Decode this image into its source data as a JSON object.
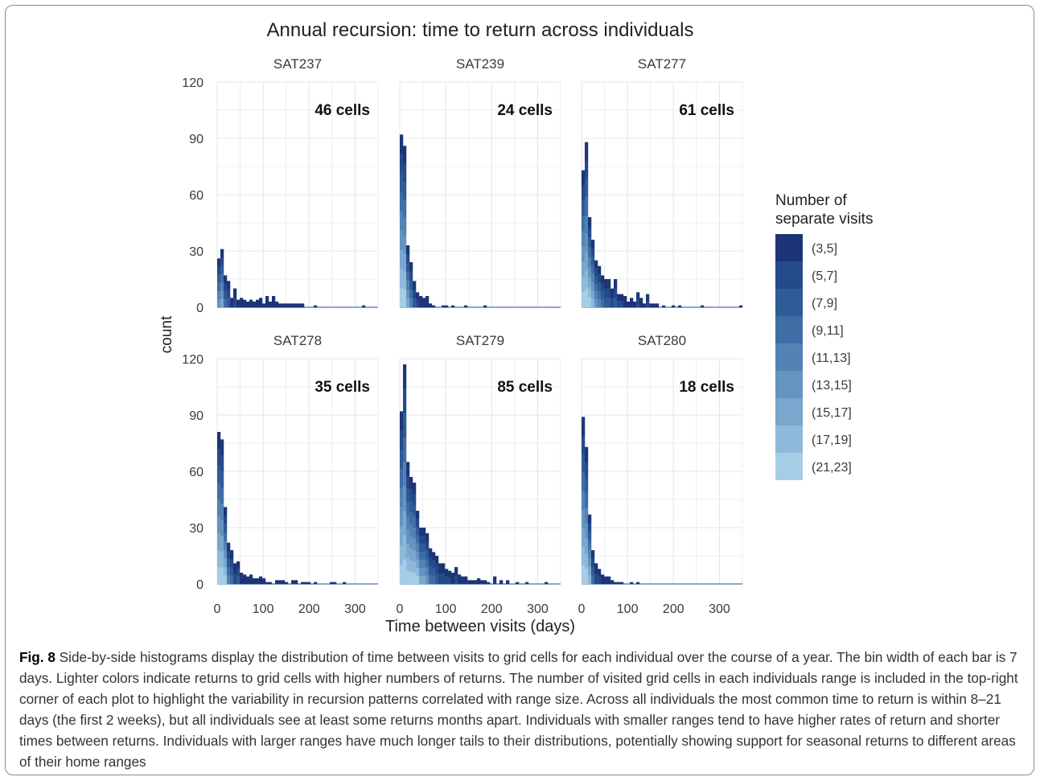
{
  "figure": {
    "title": "Annual recursion: time to return across individuals",
    "xlabel": "Time between visits (days)",
    "ylabel": "count",
    "legend_title": [
      "Number of",
      "separate visits"
    ],
    "legend_labels": [
      "(3,5]",
      "(5,7]",
      "(7,9]",
      "(9,11]",
      "(11,13]",
      "(13,15]",
      "(15,17]",
      "(17,19]",
      "(21,23]"
    ]
  },
  "colors": {
    "legend": [
      "#1d3577",
      "#244a8a",
      "#2f5b96",
      "#3f6ea6",
      "#5283b4",
      "#6494bf",
      "#79a7cd",
      "#8db9da",
      "#a6cde6"
    ],
    "grid": "#e6e6e6",
    "text": "#3c3c3c",
    "baseline": "#4a6fb0"
  },
  "chart_data": {
    "type": "bar",
    "bin_width_days": 7,
    "x_ticks": [
      0,
      100,
      200,
      300
    ],
    "y_ticks": [
      0,
      30,
      60,
      90,
      120
    ],
    "xlim": [
      0,
      350
    ],
    "ylim": [
      0,
      120
    ],
    "panels": [
      {
        "name": "SAT237",
        "annotation": "46 cells",
        "bins": [
          {
            "x": 3.5,
            "count": 26
          },
          {
            "x": 10.5,
            "count": 31
          },
          {
            "x": 17.5,
            "count": 17
          },
          {
            "x": 24.5,
            "count": 14
          },
          {
            "x": 31.5,
            "count": 5
          },
          {
            "x": 38.5,
            "count": 10
          },
          {
            "x": 45.5,
            "count": 4
          },
          {
            "x": 52.5,
            "count": 5
          },
          {
            "x": 59.5,
            "count": 4
          },
          {
            "x": 66.5,
            "count": 3
          },
          {
            "x": 73.5,
            "count": 4
          },
          {
            "x": 80.5,
            "count": 3
          },
          {
            "x": 87.5,
            "count": 4
          },
          {
            "x": 94.5,
            "count": 5
          },
          {
            "x": 101.5,
            "count": 2
          },
          {
            "x": 108.5,
            "count": 6
          },
          {
            "x": 115.5,
            "count": 3
          },
          {
            "x": 122.5,
            "count": 6
          },
          {
            "x": 129.5,
            "count": 3
          },
          {
            "x": 136.5,
            "count": 2
          },
          {
            "x": 143.5,
            "count": 2
          },
          {
            "x": 150.5,
            "count": 2
          },
          {
            "x": 157.5,
            "count": 2
          },
          {
            "x": 164.5,
            "count": 2
          },
          {
            "x": 171.5,
            "count": 2
          },
          {
            "x": 178.5,
            "count": 2
          },
          {
            "x": 185.5,
            "count": 2
          },
          {
            "x": 213.5,
            "count": 1
          },
          {
            "x": 318.5,
            "count": 1
          }
        ]
      },
      {
        "name": "SAT239",
        "annotation": "24 cells",
        "bins": [
          {
            "x": 3.5,
            "count": 92
          },
          {
            "x": 10.5,
            "count": 86
          },
          {
            "x": 17.5,
            "count": 33
          },
          {
            "x": 24.5,
            "count": 24
          },
          {
            "x": 31.5,
            "count": 14
          },
          {
            "x": 38.5,
            "count": 8
          },
          {
            "x": 45.5,
            "count": 6
          },
          {
            "x": 52.5,
            "count": 5
          },
          {
            "x": 59.5,
            "count": 6
          },
          {
            "x": 66.5,
            "count": 2
          },
          {
            "x": 73.5,
            "count": 1
          },
          {
            "x": 94.5,
            "count": 1
          },
          {
            "x": 101.5,
            "count": 1
          },
          {
            "x": 115.5,
            "count": 1
          },
          {
            "x": 143.5,
            "count": 1
          },
          {
            "x": 185.5,
            "count": 1
          }
        ]
      },
      {
        "name": "SAT277",
        "annotation": "61 cells",
        "bins": [
          {
            "x": 3.5,
            "count": 73
          },
          {
            "x": 10.5,
            "count": 88
          },
          {
            "x": 17.5,
            "count": 48
          },
          {
            "x": 24.5,
            "count": 36
          },
          {
            "x": 31.5,
            "count": 25
          },
          {
            "x": 38.5,
            "count": 22
          },
          {
            "x": 45.5,
            "count": 17
          },
          {
            "x": 52.5,
            "count": 15
          },
          {
            "x": 59.5,
            "count": 15
          },
          {
            "x": 66.5,
            "count": 10
          },
          {
            "x": 73.5,
            "count": 15
          },
          {
            "x": 80.5,
            "count": 7
          },
          {
            "x": 87.5,
            "count": 7
          },
          {
            "x": 94.5,
            "count": 6
          },
          {
            "x": 101.5,
            "count": 3
          },
          {
            "x": 108.5,
            "count": 5
          },
          {
            "x": 115.5,
            "count": 3
          },
          {
            "x": 122.5,
            "count": 8
          },
          {
            "x": 129.5,
            "count": 5
          },
          {
            "x": 136.5,
            "count": 2
          },
          {
            "x": 143.5,
            "count": 7
          },
          {
            "x": 150.5,
            "count": 2
          },
          {
            "x": 157.5,
            "count": 2
          },
          {
            "x": 164.5,
            "count": 2
          },
          {
            "x": 178.5,
            "count": 1
          },
          {
            "x": 199.5,
            "count": 1
          },
          {
            "x": 213.5,
            "count": 1
          },
          {
            "x": 262.5,
            "count": 1
          },
          {
            "x": 346.5,
            "count": 1
          }
        ]
      },
      {
        "name": "SAT278",
        "annotation": "35 cells",
        "bins": [
          {
            "x": 3.5,
            "count": 81
          },
          {
            "x": 10.5,
            "count": 77
          },
          {
            "x": 17.5,
            "count": 41
          },
          {
            "x": 24.5,
            "count": 22
          },
          {
            "x": 31.5,
            "count": 18
          },
          {
            "x": 38.5,
            "count": 11
          },
          {
            "x": 45.5,
            "count": 12
          },
          {
            "x": 52.5,
            "count": 6
          },
          {
            "x": 59.5,
            "count": 5
          },
          {
            "x": 66.5,
            "count": 4
          },
          {
            "x": 73.5,
            "count": 5
          },
          {
            "x": 80.5,
            "count": 3
          },
          {
            "x": 87.5,
            "count": 3
          },
          {
            "x": 94.5,
            "count": 4
          },
          {
            "x": 101.5,
            "count": 3
          },
          {
            "x": 108.5,
            "count": 1
          },
          {
            "x": 115.5,
            "count": 1
          },
          {
            "x": 129.5,
            "count": 2
          },
          {
            "x": 136.5,
            "count": 2
          },
          {
            "x": 143.5,
            "count": 2
          },
          {
            "x": 150.5,
            "count": 1
          },
          {
            "x": 164.5,
            "count": 2
          },
          {
            "x": 171.5,
            "count": 2
          },
          {
            "x": 185.5,
            "count": 1
          },
          {
            "x": 192.5,
            "count": 1
          },
          {
            "x": 199.5,
            "count": 1
          },
          {
            "x": 213.5,
            "count": 1
          },
          {
            "x": 248.5,
            "count": 1
          },
          {
            "x": 255.5,
            "count": 1
          },
          {
            "x": 276.5,
            "count": 1
          }
        ]
      },
      {
        "name": "SAT279",
        "annotation": "85 cells",
        "bins": [
          {
            "x": 3.5,
            "count": 92
          },
          {
            "x": 10.5,
            "count": 117
          },
          {
            "x": 17.5,
            "count": 65
          },
          {
            "x": 24.5,
            "count": 57
          },
          {
            "x": 31.5,
            "count": 54
          },
          {
            "x": 38.5,
            "count": 39
          },
          {
            "x": 45.5,
            "count": 30
          },
          {
            "x": 52.5,
            "count": 30
          },
          {
            "x": 59.5,
            "count": 27
          },
          {
            "x": 66.5,
            "count": 19
          },
          {
            "x": 73.5,
            "count": 17
          },
          {
            "x": 80.5,
            "count": 15
          },
          {
            "x": 87.5,
            "count": 11
          },
          {
            "x": 94.5,
            "count": 11
          },
          {
            "x": 101.5,
            "count": 8
          },
          {
            "x": 108.5,
            "count": 7
          },
          {
            "x": 115.5,
            "count": 6
          },
          {
            "x": 122.5,
            "count": 9
          },
          {
            "x": 129.5,
            "count": 5
          },
          {
            "x": 136.5,
            "count": 4
          },
          {
            "x": 143.5,
            "count": 4
          },
          {
            "x": 150.5,
            "count": 2
          },
          {
            "x": 157.5,
            "count": 2
          },
          {
            "x": 164.5,
            "count": 2
          },
          {
            "x": 171.5,
            "count": 3
          },
          {
            "x": 178.5,
            "count": 2
          },
          {
            "x": 185.5,
            "count": 2
          },
          {
            "x": 192.5,
            "count": 1
          },
          {
            "x": 206.5,
            "count": 4
          },
          {
            "x": 220.5,
            "count": 2
          },
          {
            "x": 234.5,
            "count": 2
          },
          {
            "x": 255.5,
            "count": 1
          },
          {
            "x": 276.5,
            "count": 1
          },
          {
            "x": 318.5,
            "count": 1
          }
        ]
      },
      {
        "name": "SAT280",
        "annotation": "18 cells",
        "bins": [
          {
            "x": 3.5,
            "count": 89
          },
          {
            "x": 10.5,
            "count": 73
          },
          {
            "x": 17.5,
            "count": 37
          },
          {
            "x": 24.5,
            "count": 18
          },
          {
            "x": 31.5,
            "count": 11
          },
          {
            "x": 38.5,
            "count": 8
          },
          {
            "x": 45.5,
            "count": 5
          },
          {
            "x": 52.5,
            "count": 4
          },
          {
            "x": 59.5,
            "count": 4
          },
          {
            "x": 66.5,
            "count": 2
          },
          {
            "x": 73.5,
            "count": 1
          },
          {
            "x": 80.5,
            "count": 1
          },
          {
            "x": 87.5,
            "count": 1
          },
          {
            "x": 108.5,
            "count": 1
          },
          {
            "x": 122.5,
            "count": 1
          }
        ]
      }
    ]
  },
  "caption": {
    "label": "Fig. 8",
    "text": " Side-by-side histograms display the distribution of time between visits to grid cells for each individual over the course of a year. The bin width of each bar is 7 days. Lighter colors indicate returns to grid cells with higher numbers of returns. The number of visited grid cells in each individuals range is included in the top-right corner of each plot to highlight the variability in recursion patterns correlated with range size. Across all individuals the most common time to return is within 8–21 days (the first 2 weeks), but all individuals see at least some returns months apart. Individuals with smaller ranges tend to have higher rates of return and shorter times between returns. Individuals with larger ranges have much longer tails to their distributions, potentially showing support for seasonal returns to different areas of their home ranges"
  }
}
